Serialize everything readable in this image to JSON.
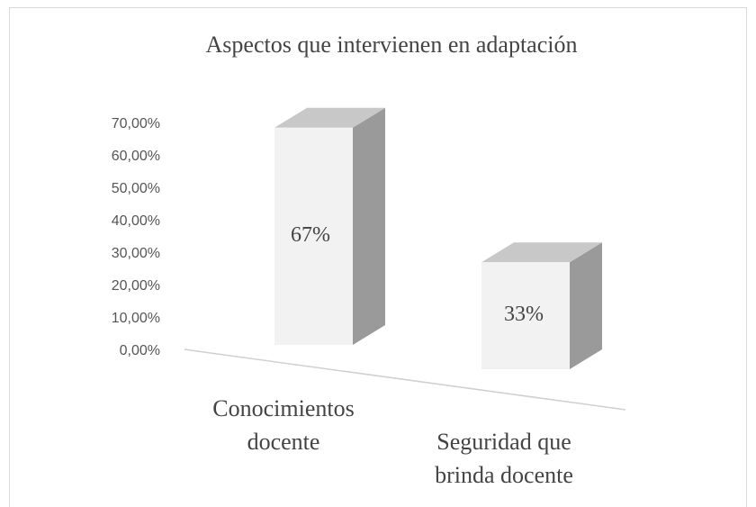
{
  "chart_data": {
    "type": "bar3d",
    "title": "Aspectos  que intervienen en adaptación",
    "categories": [
      "Conocimientos docente",
      "Seguridad que brinda docente"
    ],
    "values": [
      67,
      33
    ],
    "value_labels": [
      "67%",
      "33%"
    ],
    "ylim": [
      0,
      70
    ],
    "yticks": [
      {
        "value": 0,
        "label": "0,00%"
      },
      {
        "value": 10,
        "label": "10,00%"
      },
      {
        "value": 20,
        "label": "20,00%"
      },
      {
        "value": 30,
        "label": "30,00%"
      },
      {
        "value": 40,
        "label": "40,00%"
      },
      {
        "value": 50,
        "label": "50,00%"
      },
      {
        "value": 60,
        "label": "60,00%"
      },
      {
        "value": 70,
        "label": "70,00%"
      }
    ],
    "grid": false
  }
}
